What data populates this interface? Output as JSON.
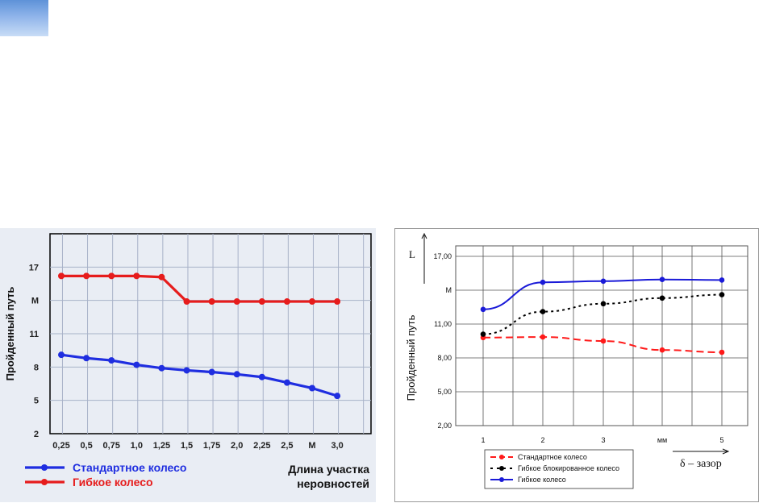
{
  "chart_data": [
    {
      "type": "line",
      "categories": [
        "0,25",
        "0,5",
        "0,75",
        "1,0",
        "1,25",
        "1,5",
        "1,75",
        "2,0",
        "2,25",
        "2,5",
        "М",
        "3,0"
      ],
      "y_tick_labels": [
        "2",
        "5",
        "8",
        "11",
        "М",
        "17"
      ],
      "ylim": [
        2,
        20
      ],
      "grid": true,
      "ylabel": "Пройденный путь",
      "xlabel": "Длина участка неровностей",
      "legend_position": "bottom-left",
      "series": [
        {
          "name": "Стандартное колесо",
          "color": "#1f2ee0",
          "values": [
            9.1,
            8.8,
            8.6,
            8.2,
            7.9,
            7.7,
            7.55,
            7.35,
            7.1,
            6.6,
            6.1,
            5.4
          ]
        },
        {
          "name": "Гибкое колесо",
          "color": "#e61c1c",
          "values": [
            16.2,
            16.2,
            16.2,
            16.2,
            16.1,
            13.9,
            13.9,
            13.9,
            13.9,
            13.9,
            13.9,
            13.9
          ]
        }
      ]
    },
    {
      "type": "line",
      "x_tick_labels": [
        "1",
        "2",
        "3",
        "мм",
        "5"
      ],
      "x": [
        1,
        2,
        3,
        4,
        5
      ],
      "y_tick_labels": [
        "2,00",
        "5,00",
        "8,00",
        "11,00",
        "М",
        "17,00"
      ],
      "ylim": [
        2,
        17
      ],
      "grid": true,
      "ylabel": "Пройденный путь",
      "y_axis_symbol": "L",
      "xlabel": "δ – зазор",
      "legend_position": "bottom-left",
      "series": [
        {
          "name": "Стандартное колесо",
          "color": "#ff1a1a",
          "style": "dashed",
          "values": [
            9.8,
            9.85,
            9.5,
            8.7,
            8.5
          ]
        },
        {
          "name": "Гибкое блокированное колесо",
          "color": "#000000",
          "style": "dotted",
          "values": [
            10.1,
            12.1,
            12.8,
            13.3,
            13.6
          ]
        },
        {
          "name": "Гибкое колесо",
          "color": "#1a1ad8",
          "style": "solid",
          "values": [
            12.3,
            14.7,
            14.8,
            14.95,
            14.9
          ]
        }
      ]
    }
  ]
}
